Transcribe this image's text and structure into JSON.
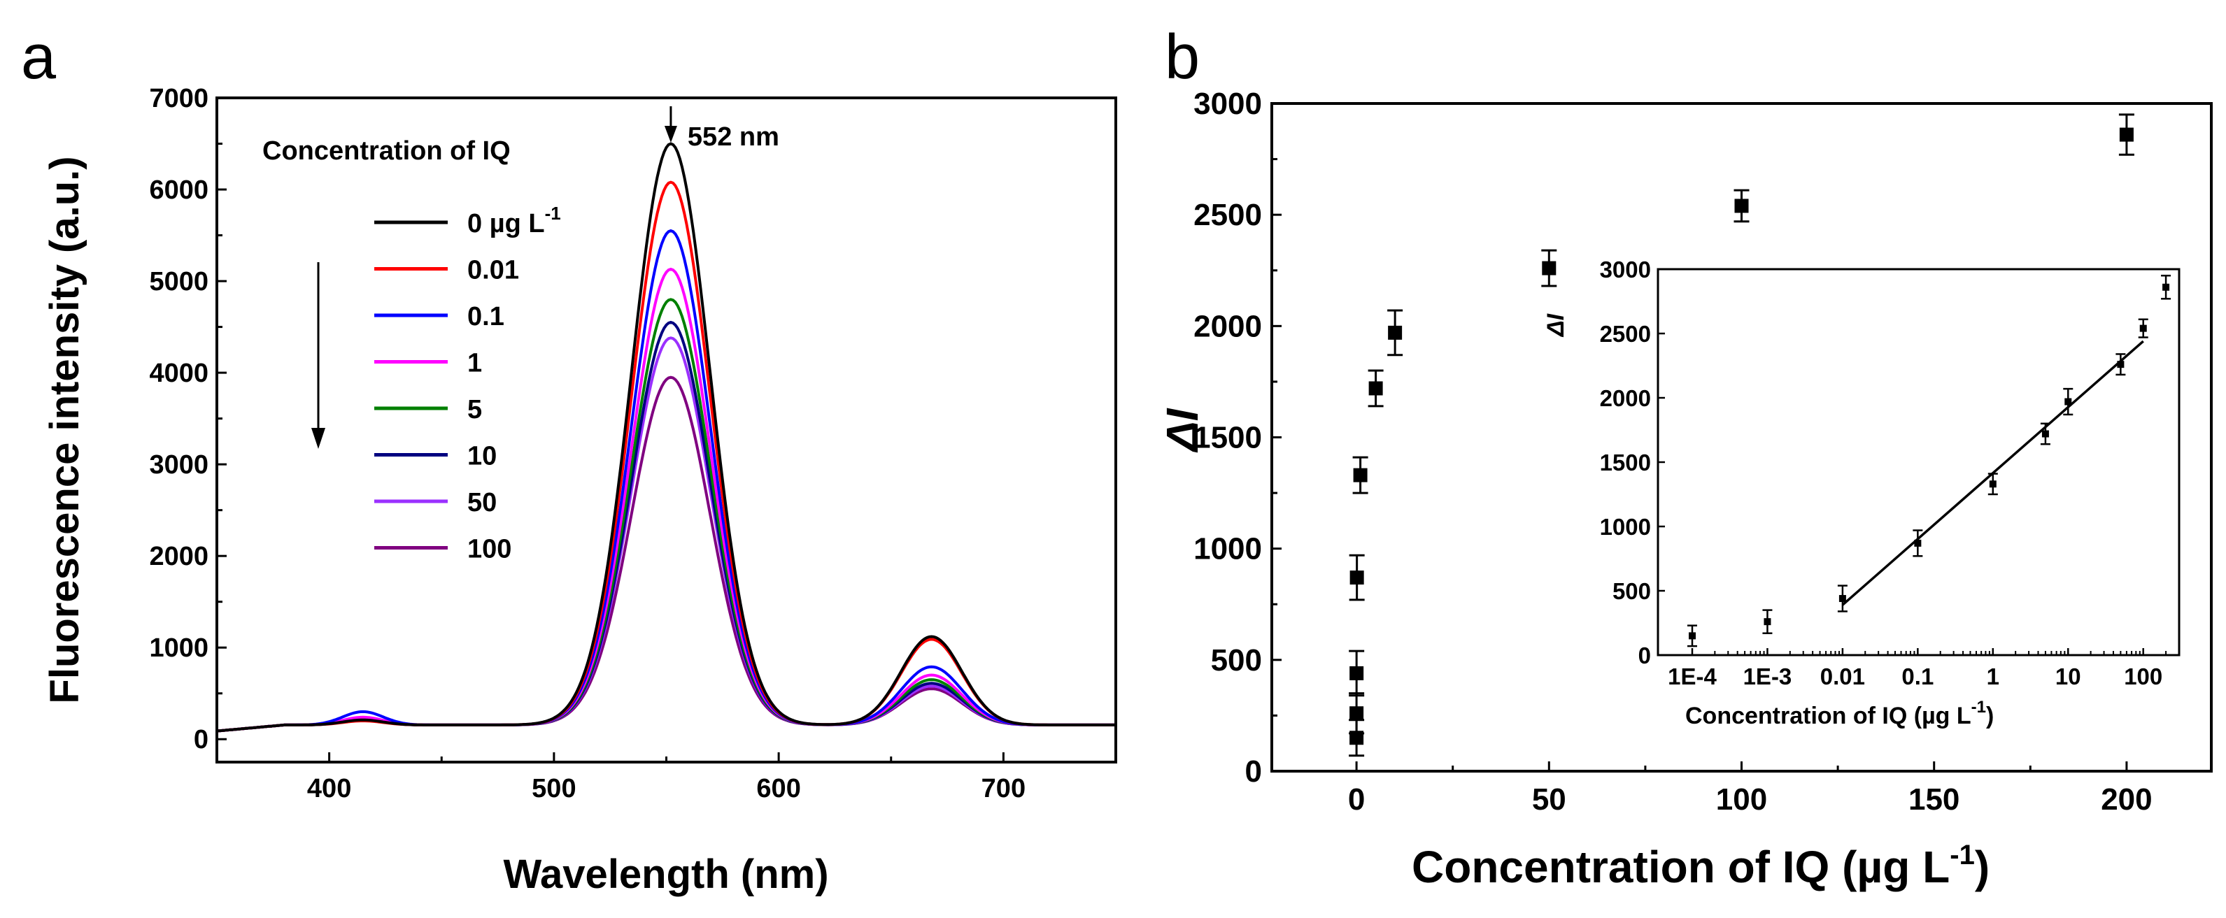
{
  "panels": {
    "a": {
      "label": "a"
    },
    "b": {
      "label": "b"
    }
  },
  "chart_data": [
    {
      "panel": "a",
      "type": "line",
      "xlabel": "Wavelength (nm)",
      "ylabel": "Fluorescence intensity (a.u.)",
      "xlim": [
        350,
        750
      ],
      "ylim": [
        -250,
        7000
      ],
      "xticks": [
        400,
        500,
        600,
        700
      ],
      "yticks": [
        0,
        1000,
        2000,
        3000,
        4000,
        5000,
        6000,
        7000
      ],
      "grid": false,
      "legend_title": "Concentration of IQ",
      "legend_position": "top-left",
      "legend_unit": "µg L",
      "legend_unit_exp": "-1",
      "annotation": {
        "text": "552 nm",
        "x": 552
      },
      "arrow": "downward arrow beside legend (decreasing intensity)",
      "baseline": 155,
      "series": [
        {
          "name": "0",
          "color": "#000000",
          "peak552": 6500,
          "peak668": 1120,
          "peak415": 210
        },
        {
          "name": "0.01",
          "color": "#ff0000",
          "peak552": 6080,
          "peak668": 1090,
          "peak415": 200
        },
        {
          "name": "0.1",
          "color": "#0000ff",
          "peak552": 5550,
          "peak668": 790,
          "peak415": 300
        },
        {
          "name": "1",
          "color": "#ff00ff",
          "peak552": 5130,
          "peak668": 700,
          "peak415": 240
        },
        {
          "name": "5",
          "color": "#008000",
          "peak552": 4800,
          "peak668": 650,
          "peak415": 230
        },
        {
          "name": "10",
          "color": "#000080",
          "peak552": 4550,
          "peak668": 610,
          "peak415": 220
        },
        {
          "name": "50",
          "color": "#9b30ff",
          "peak552": 4380,
          "peak668": 580,
          "peak415": 215
        },
        {
          "name": "100",
          "color": "#800080",
          "peak552": 3950,
          "peak668": 550,
          "peak415": 210
        }
      ]
    },
    {
      "panel": "b",
      "type": "scatter",
      "xlabel": "Concentration of IQ (µg L",
      "xlabel_exp": "-1",
      "xlabel_close": ")",
      "ylabel": "ΔI",
      "xlim": [
        -22,
        222
      ],
      "ylim": [
        0,
        3000
      ],
      "xticks": [
        0,
        50,
        100,
        150,
        200
      ],
      "yticks": [
        0,
        500,
        1000,
        1500,
        2000,
        2500,
        3000
      ],
      "grid": false,
      "points": [
        {
          "x": 0.0001,
          "y": 150,
          "err": 80
        },
        {
          "x": 0.001,
          "y": 260,
          "err": 90
        },
        {
          "x": 0.01,
          "y": 440,
          "err": 100
        },
        {
          "x": 0.1,
          "y": 870,
          "err": 100
        },
        {
          "x": 1,
          "y": 1330,
          "err": 80
        },
        {
          "x": 5,
          "y": 1720,
          "err": 80
        },
        {
          "x": 10,
          "y": 1970,
          "err": 100
        },
        {
          "x": 50,
          "y": 2260,
          "err": 80
        },
        {
          "x": 100,
          "y": 2540,
          "err": 70
        },
        {
          "x": 200,
          "y": 2860,
          "err": 90
        }
      ],
      "inset": {
        "type": "scatter",
        "xscale": "log",
        "xlabel": "Concentration of IQ (µg L",
        "xlabel_exp": "-1",
        "xlabel_close": ")",
        "ylabel": "ΔI",
        "xlim": [
          3.5e-05,
          300
        ],
        "ylim": [
          0,
          3000
        ],
        "xticks": [
          0.0001,
          0.001,
          0.01,
          0.1,
          1,
          10,
          100
        ],
        "xticklabels": [
          "1E-4",
          "1E-3",
          "0.01",
          "0.1",
          "1",
          "10",
          "100"
        ],
        "yticks": [
          0,
          500,
          1000,
          1500,
          2000,
          2500,
          3000
        ],
        "fit_line": {
          "x_from": 0.01,
          "x_to": 100,
          "y_from": 390,
          "y_to": 2440
        }
      }
    }
  ]
}
